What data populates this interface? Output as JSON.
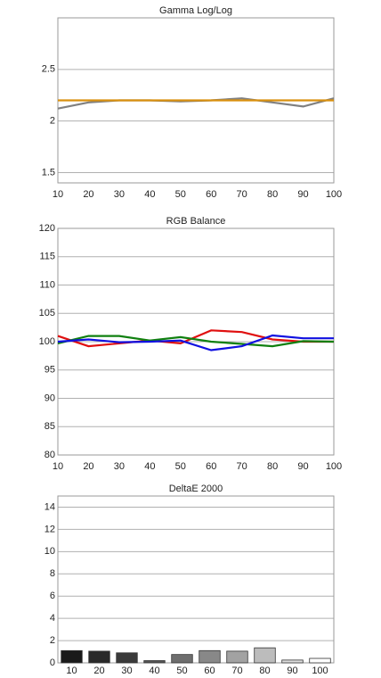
{
  "chart_data": [
    {
      "type": "line",
      "title": "Gamma Log/Log",
      "x": [
        10,
        20,
        30,
        40,
        50,
        60,
        70,
        80,
        90,
        100
      ],
      "series": [
        {
          "color": "#808080",
          "values": [
            2.12,
            2.18,
            2.2,
            2.2,
            2.19,
            2.2,
            2.22,
            2.18,
            2.14,
            2.22
          ]
        },
        {
          "color": "#d9900f",
          "values": [
            2.2,
            2.2,
            2.2,
            2.2,
            2.2,
            2.2,
            2.2,
            2.2,
            2.2,
            2.2
          ]
        }
      ],
      "xlim": [
        10,
        100
      ],
      "xticks": [
        10,
        20,
        30,
        40,
        50,
        60,
        70,
        80,
        90,
        100
      ],
      "ylim": [
        1.4,
        3.0
      ],
      "yticks": [
        1.5,
        2,
        2.5
      ],
      "grid": true
    },
    {
      "type": "line",
      "title": "RGB Balance",
      "x": [
        10,
        20,
        30,
        40,
        50,
        60,
        70,
        80,
        90,
        100
      ],
      "series": [
        {
          "color": "#e01010",
          "values": [
            101,
            99.2,
            99.7,
            100.2,
            99.7,
            102,
            101.7,
            100.4,
            100,
            100
          ]
        },
        {
          "color": "#108010",
          "values": [
            99.7,
            101,
            101,
            100.2,
            100.8,
            100,
            99.6,
            99.2,
            100.1,
            100
          ]
        },
        {
          "color": "#1010e0",
          "values": [
            100,
            100.4,
            99.9,
            100,
            100.2,
            98.5,
            99.2,
            101.1,
            100.6,
            100.6
          ]
        }
      ],
      "xlim": [
        10,
        100
      ],
      "xticks": [
        10,
        20,
        30,
        40,
        50,
        60,
        70,
        80,
        90,
        100
      ],
      "ylim": [
        80,
        120
      ],
      "yticks": [
        80,
        85,
        90,
        95,
        100,
        105,
        110,
        115,
        120
      ],
      "grid": true
    },
    {
      "type": "bar",
      "title": "DeltaE 2000",
      "categories": [
        "10",
        "20",
        "30",
        "40",
        "50",
        "60",
        "70",
        "80",
        "90",
        "100"
      ],
      "values": [
        1.1,
        1.05,
        0.9,
        0.2,
        0.75,
        1.1,
        1.05,
        1.35,
        0.25,
        0.4
      ],
      "colors": [
        "#1a1a1a",
        "#2a2a2a",
        "#3a3a3a",
        "#555555",
        "#6e6e6e",
        "#888888",
        "#a2a2a2",
        "#bcbcbc",
        "#dcdcdc",
        "#ffffff"
      ],
      "ylim": [
        0,
        15
      ],
      "yticks": [
        0,
        2,
        4,
        6,
        8,
        10,
        12,
        14
      ],
      "grid": true
    }
  ]
}
